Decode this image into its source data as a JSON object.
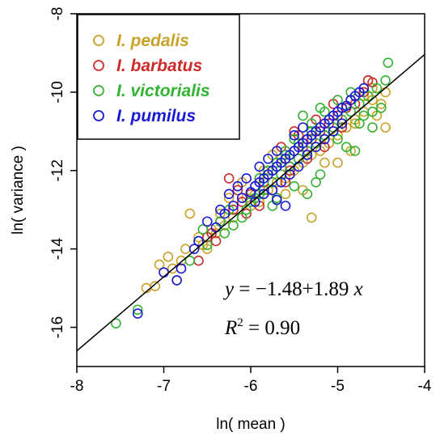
{
  "chart_data": {
    "type": "scatter",
    "xlabel": "ln( mean )",
    "ylabel": "ln( variance )",
    "xlim": [
      -8,
      -4
    ],
    "ylim": [
      -17,
      -8
    ],
    "x_ticks": [
      -8,
      -7,
      -6,
      -5,
      -4
    ],
    "y_ticks": [
      -16,
      -14,
      -12,
      -10,
      -8
    ],
    "grid": false,
    "legend_position": "top-left",
    "series": [
      {
        "name": "I. pedalis",
        "color": "#c9a227",
        "points": [
          [
            -7.05,
            -14.4
          ],
          [
            -6.95,
            -14.2
          ],
          [
            -6.85,
            -14.8
          ],
          [
            -6.9,
            -14.5
          ],
          [
            -6.6,
            -13.7
          ],
          [
            -6.5,
            -14.0
          ],
          [
            -6.4,
            -13.6
          ],
          [
            -6.3,
            -13.4
          ],
          [
            -6.2,
            -13.2
          ],
          [
            -6.0,
            -12.9
          ],
          [
            -5.9,
            -12.8
          ],
          [
            -5.8,
            -12.5
          ],
          [
            -6.1,
            -12.3
          ],
          [
            -5.6,
            -12.2
          ],
          [
            -5.5,
            -12.0
          ],
          [
            -5.4,
            -11.8
          ],
          [
            -5.3,
            -11.6
          ],
          [
            -5.2,
            -11.5
          ],
          [
            -5.1,
            -11.3
          ],
          [
            -5.0,
            -11.1
          ],
          [
            -4.9,
            -10.9
          ],
          [
            -4.8,
            -10.7
          ],
          [
            -4.7,
            -10.5
          ],
          [
            -4.6,
            -10.2
          ],
          [
            -4.55,
            -10.6
          ],
          [
            -4.45,
            -10.0
          ],
          [
            -4.5,
            -10.3
          ],
          [
            -4.6,
            -9.9
          ],
          [
            -4.7,
            -10.1
          ],
          [
            -4.65,
            -9.7
          ],
          [
            -5.3,
            -13.2
          ],
          [
            -5.4,
            -12.5
          ],
          [
            -5.0,
            -11.8
          ],
          [
            -4.85,
            -11.5
          ],
          [
            -4.8,
            -10.8
          ],
          [
            -5.6,
            -12.6
          ],
          [
            -5.55,
            -11.9
          ],
          [
            -5.75,
            -11.6
          ],
          [
            -5.05,
            -10.6
          ],
          [
            -4.45,
            -10.9
          ],
          [
            -6.7,
            -13.1
          ],
          [
            -6.55,
            -13.9
          ],
          [
            -6.25,
            -12.7
          ],
          [
            -6.15,
            -12.4
          ],
          [
            -5.95,
            -12.6
          ],
          [
            -5.85,
            -12.0
          ],
          [
            -5.7,
            -12.3
          ],
          [
            -5.45,
            -11.7
          ],
          [
            -5.35,
            -11.2
          ],
          [
            -5.25,
            -11.0
          ],
          [
            -7.2,
            -15.0
          ],
          [
            -7.1,
            -14.95
          ],
          [
            -6.8,
            -14.3
          ],
          [
            -6.75,
            -14.0
          ],
          [
            -6.45,
            -13.5
          ],
          [
            -6.35,
            -13.1
          ],
          [
            -6.05,
            -12.7
          ],
          [
            -5.8,
            -12.1
          ],
          [
            -5.65,
            -11.7
          ],
          [
            -5.15,
            -11.8
          ]
        ]
      },
      {
        "name": "I. barbatus",
        "color": "#cc2b2b",
        "points": [
          [
            -6.6,
            -14.3
          ],
          [
            -6.5,
            -13.7
          ],
          [
            -6.45,
            -13.6
          ],
          [
            -6.35,
            -13.3
          ],
          [
            -6.2,
            -13.0
          ],
          [
            -6.1,
            -12.8
          ],
          [
            -6.0,
            -12.6
          ],
          [
            -5.95,
            -12.4
          ],
          [
            -5.85,
            -12.3
          ],
          [
            -5.8,
            -12.1
          ],
          [
            -5.7,
            -11.9
          ],
          [
            -5.6,
            -11.7
          ],
          [
            -5.5,
            -11.5
          ],
          [
            -5.4,
            -11.4
          ],
          [
            -5.3,
            -11.2
          ],
          [
            -5.2,
            -11.0
          ],
          [
            -5.1,
            -10.8
          ],
          [
            -5.0,
            -10.6
          ],
          [
            -4.9,
            -10.4
          ],
          [
            -4.8,
            -10.3
          ],
          [
            -4.65,
            -9.7
          ],
          [
            -4.6,
            -9.75
          ],
          [
            -4.7,
            -10.0
          ],
          [
            -5.05,
            -10.3
          ],
          [
            -5.25,
            -10.7
          ],
          [
            -5.45,
            -11.1
          ],
          [
            -5.65,
            -11.4
          ],
          [
            -5.75,
            -12.5
          ],
          [
            -5.9,
            -12.9
          ],
          [
            -6.05,
            -13.1
          ],
          [
            -6.15,
            -12.5
          ],
          [
            -6.25,
            -12.2
          ],
          [
            -5.55,
            -12.0
          ],
          [
            -5.35,
            -11.7
          ],
          [
            -5.15,
            -11.4
          ],
          [
            -4.95,
            -10.9
          ],
          [
            -4.85,
            -10.2
          ],
          [
            -5.5,
            -11.0
          ],
          [
            -5.6,
            -12.3
          ],
          [
            -6.4,
            -13.8
          ]
        ]
      },
      {
        "name": "I. victorialis",
        "color": "#33b233",
        "points": [
          [
            -7.55,
            -15.9
          ],
          [
            -7.3,
            -15.55
          ],
          [
            -6.7,
            -14.3
          ],
          [
            -6.6,
            -13.8
          ],
          [
            -6.5,
            -13.9
          ],
          [
            -6.3,
            -13.6
          ],
          [
            -6.2,
            -13.4
          ],
          [
            -6.05,
            -13.0
          ],
          [
            -5.95,
            -12.7
          ],
          [
            -5.85,
            -12.5
          ],
          [
            -5.75,
            -12.3
          ],
          [
            -5.65,
            -12.1
          ],
          [
            -5.55,
            -11.9
          ],
          [
            -5.45,
            -11.7
          ],
          [
            -5.35,
            -11.5
          ],
          [
            -5.25,
            -11.3
          ],
          [
            -5.15,
            -11.1
          ],
          [
            -5.05,
            -10.9
          ],
          [
            -4.95,
            -10.7
          ],
          [
            -4.85,
            -10.5
          ],
          [
            -4.75,
            -10.3
          ],
          [
            -4.65,
            -10.1
          ],
          [
            -4.55,
            -9.9
          ],
          [
            -4.45,
            -9.7
          ],
          [
            -4.42,
            -9.25
          ],
          [
            -4.6,
            -10.9
          ],
          [
            -4.8,
            -11.5
          ],
          [
            -4.9,
            -11.4
          ],
          [
            -5.0,
            -11.2
          ],
          [
            -5.1,
            -10.7
          ],
          [
            -5.2,
            -10.4
          ],
          [
            -5.3,
            -10.8
          ],
          [
            -5.4,
            -10.6
          ],
          [
            -5.5,
            -11.2
          ],
          [
            -5.6,
            -11.6
          ],
          [
            -5.7,
            -11.8
          ],
          [
            -5.8,
            -12.0
          ],
          [
            -5.9,
            -12.2
          ],
          [
            -6.0,
            -12.8
          ],
          [
            -6.1,
            -13.2
          ],
          [
            -6.25,
            -13.0
          ],
          [
            -6.35,
            -13.3
          ],
          [
            -6.55,
            -13.5
          ],
          [
            -5.25,
            -12.3
          ],
          [
            -5.35,
            -12.6
          ],
          [
            -5.5,
            -12.4
          ],
          [
            -5.7,
            -12.7
          ],
          [
            -5.2,
            -12.1
          ],
          [
            -4.7,
            -10.6
          ],
          [
            -4.5,
            -10.4
          ],
          [
            -4.85,
            -10.0
          ],
          [
            -5.0,
            -10.2
          ],
          [
            -5.15,
            -10.5
          ],
          [
            -5.3,
            -11.0
          ],
          [
            -5.45,
            -11.3
          ],
          [
            -5.6,
            -11.5
          ],
          [
            -5.75,
            -12.9
          ],
          [
            -5.9,
            -12.6
          ],
          [
            -4.6,
            -10.5
          ],
          [
            -4.75,
            -10.8
          ]
        ]
      },
      {
        "name": "I. pumilus",
        "color": "#1a1ad6",
        "points": [
          [
            -7.3,
            -15.65
          ],
          [
            -6.85,
            -14.8
          ],
          [
            -6.8,
            -14.5
          ],
          [
            -6.65,
            -14.0
          ],
          [
            -6.6,
            -13.8
          ],
          [
            -6.4,
            -13.45
          ],
          [
            -6.3,
            -13.1
          ],
          [
            -6.2,
            -12.9
          ],
          [
            -6.1,
            -12.7
          ],
          [
            -6.0,
            -12.55
          ],
          [
            -5.95,
            -12.4
          ],
          [
            -5.9,
            -12.3
          ],
          [
            -5.85,
            -12.2
          ],
          [
            -5.8,
            -12.1
          ],
          [
            -5.75,
            -12.0
          ],
          [
            -5.7,
            -11.9
          ],
          [
            -5.65,
            -11.8
          ],
          [
            -5.6,
            -11.7
          ],
          [
            -5.55,
            -11.6
          ],
          [
            -5.5,
            -11.5
          ],
          [
            -5.45,
            -11.4
          ],
          [
            -5.4,
            -11.3
          ],
          [
            -5.35,
            -11.2
          ],
          [
            -5.3,
            -11.1
          ],
          [
            -5.25,
            -11.0
          ],
          [
            -5.2,
            -10.9
          ],
          [
            -5.15,
            -10.8
          ],
          [
            -5.1,
            -10.7
          ],
          [
            -5.05,
            -10.6
          ],
          [
            -5.0,
            -10.5
          ],
          [
            -4.95,
            -10.4
          ],
          [
            -4.9,
            -10.35
          ],
          [
            -4.85,
            -10.2
          ],
          [
            -4.8,
            -10.1
          ],
          [
            -4.75,
            -10.0
          ],
          [
            -4.7,
            -9.9
          ],
          [
            -5.95,
            -12.8
          ],
          [
            -5.85,
            -12.6
          ],
          [
            -5.75,
            -12.5
          ],
          [
            -5.65,
            -12.3
          ],
          [
            -5.55,
            -12.1
          ],
          [
            -5.45,
            -11.9
          ],
          [
            -5.35,
            -11.6
          ],
          [
            -5.25,
            -11.4
          ],
          [
            -5.15,
            -11.2
          ],
          [
            -5.05,
            -11.0
          ],
          [
            -4.95,
            -10.8
          ],
          [
            -6.25,
            -12.6
          ],
          [
            -6.15,
            -12.4
          ],
          [
            -6.05,
            -12.2
          ],
          [
            -5.9,
            -11.9
          ],
          [
            -5.8,
            -11.7
          ],
          [
            -5.7,
            -11.5
          ],
          [
            -5.5,
            -11.1
          ],
          [
            -5.4,
            -10.9
          ],
          [
            -5.6,
            -12.9
          ],
          [
            -5.7,
            -12.75
          ],
          [
            -6.35,
            -13.0
          ],
          [
            -6.5,
            -13.3
          ],
          [
            -7.0,
            -14.6
          ]
        ]
      }
    ],
    "regression": {
      "intercept": -1.48,
      "slope": 1.89,
      "r_squared": 0.9,
      "x_range": [
        -8,
        -4
      ]
    },
    "annotations": {
      "equation_lhs": "y",
      "equation_eq": " = ",
      "equation_rhs": "−1.48+1.89 ",
      "equation_var": "x",
      "r2_base": "R",
      "r2_sup": "2",
      "r2_value": " = 0.90"
    }
  }
}
